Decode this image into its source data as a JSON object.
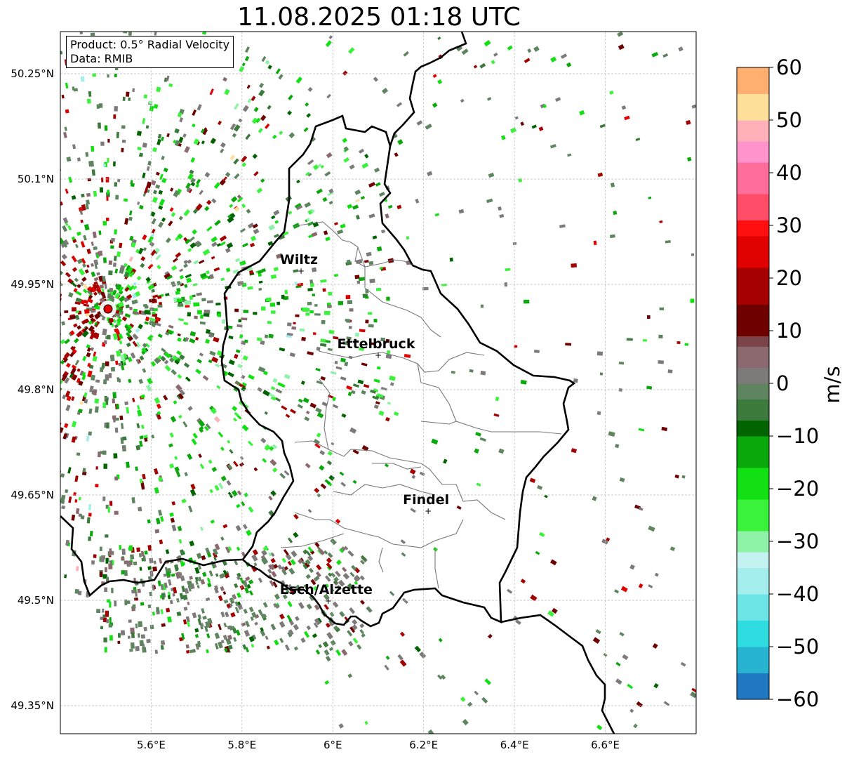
{
  "title": "11.08.2025 01:18 UTC",
  "info": {
    "product": "Product: 0.5° Radial Velocity",
    "source": "Data: RMIB"
  },
  "map": {
    "lon_range": [
      5.4,
      6.8
    ],
    "lat_range": [
      49.31,
      50.31
    ],
    "grid": true,
    "x_ticks": [
      {
        "value": 5.6,
        "label": "5.6°E"
      },
      {
        "value": 5.8,
        "label": "5.8°E"
      },
      {
        "value": 6.0,
        "label": "6°E"
      },
      {
        "value": 6.2,
        "label": "6.2°E"
      },
      {
        "value": 6.4,
        "label": "6.4°E"
      },
      {
        "value": 6.6,
        "label": "6.6°E"
      }
    ],
    "y_ticks": [
      {
        "value": 49.35,
        "label": "49.35°N"
      },
      {
        "value": 49.5,
        "label": "49.5°N"
      },
      {
        "value": 49.65,
        "label": "49.65°N"
      },
      {
        "value": 49.8,
        "label": "49.8°N"
      },
      {
        "value": 49.95,
        "label": "49.95°N"
      },
      {
        "value": 50.1,
        "label": "50.1°N"
      },
      {
        "value": 50.25,
        "label": "50.25°N"
      }
    ],
    "radar_site": {
      "lon": 5.505,
      "lat": 49.915,
      "color": "#e00000"
    },
    "cities": [
      {
        "name": "Wiltz",
        "lon": 5.93,
        "lat": 49.97
      },
      {
        "name": "Ettelbruck",
        "lon": 6.1,
        "lat": 49.85
      },
      {
        "name": "Findel",
        "lon": 6.21,
        "lat": 49.628
      },
      {
        "name": "Esch/Alzette",
        "lon": 5.99,
        "lat": 49.5
      }
    ]
  },
  "colorbar": {
    "label": "m/s",
    "min": -60,
    "max": 60,
    "ticks": [
      {
        "value": 60,
        "label": "60"
      },
      {
        "value": 50,
        "label": "50"
      },
      {
        "value": 40,
        "label": "40"
      },
      {
        "value": 30,
        "label": "30"
      },
      {
        "value": 20,
        "label": "20"
      },
      {
        "value": 10,
        "label": "10"
      },
      {
        "value": 0,
        "label": "0"
      },
      {
        "value": -10,
        "label": "−10"
      },
      {
        "value": -20,
        "label": "−20"
      },
      {
        "value": -30,
        "label": "−30"
      },
      {
        "value": -40,
        "label": "−40"
      },
      {
        "value": -50,
        "label": "−50"
      },
      {
        "value": -60,
        "label": "−60"
      }
    ],
    "stops": [
      {
        "value": -60,
        "color": "#1f78c1"
      },
      {
        "value": -55,
        "color": "#26b4d0"
      },
      {
        "value": -50,
        "color": "#2fdce0"
      },
      {
        "value": -45,
        "color": "#6ae4e4"
      },
      {
        "value": -40,
        "color": "#a4eeee"
      },
      {
        "value": -35,
        "color": "#c4f2f0"
      },
      {
        "value": -32,
        "color": "#8ef2a8"
      },
      {
        "value": -28,
        "color": "#3af23a"
      },
      {
        "value": -22,
        "color": "#12e012"
      },
      {
        "value": -16,
        "color": "#0aa80a"
      },
      {
        "value": -10,
        "color": "#006400"
      },
      {
        "value": -7,
        "color": "#3d7a3d"
      },
      {
        "value": -3,
        "color": "#5e8560"
      },
      {
        "value": 0,
        "color": "#7e7a7a"
      },
      {
        "value": 3,
        "color": "#8a6a6e"
      },
      {
        "value": 7,
        "color": "#7a4448"
      },
      {
        "value": 9,
        "color": "#6e0000"
      },
      {
        "value": 15,
        "color": "#a40000"
      },
      {
        "value": 22,
        "color": "#e00000"
      },
      {
        "value": 28,
        "color": "#ff1010"
      },
      {
        "value": 31,
        "color": "#ff4d68"
      },
      {
        "value": 36,
        "color": "#ff6e9a"
      },
      {
        "value": 42,
        "color": "#ff94cc"
      },
      {
        "value": 46,
        "color": "#ffb0b8"
      },
      {
        "value": 50,
        "color": "#ffe09a"
      },
      {
        "value": 55,
        "color": "#ffb070"
      },
      {
        "value": 60,
        "color": "#ff9a4a"
      }
    ]
  }
}
